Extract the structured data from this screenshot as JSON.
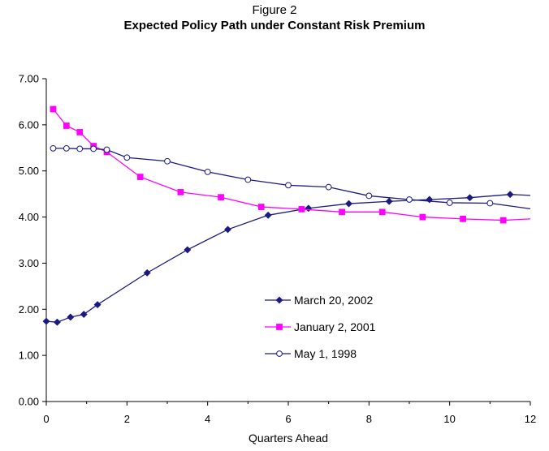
{
  "chart_data": {
    "type": "line",
    "title": "Figure 2",
    "subtitle": "Expected Policy Path under Constant Risk Premium",
    "xlabel": "Quarters Ahead",
    "ylabel": "",
    "xlim": [
      0,
      12
    ],
    "ylim": [
      0,
      7
    ],
    "x_ticks": [
      0,
      2,
      4,
      6,
      8,
      10,
      12
    ],
    "x_tick_labels": [
      "0",
      "2",
      "4",
      "6",
      "8",
      "10",
      "12"
    ],
    "y_ticks": [
      0,
      1,
      2,
      3,
      4,
      5,
      6,
      7
    ],
    "y_tick_labels": [
      "0.00",
      "1.00",
      "2.00",
      "3.00",
      "4.00",
      "5.00",
      "6.00",
      "7.00"
    ],
    "grid": false,
    "legend_position": "center-right",
    "series": [
      {
        "name": "March 20, 2002",
        "color": "#1a1a80",
        "marker": "diamond-filled",
        "x": [
          0,
          0.27,
          0.6,
          0.93,
          1.27,
          2.5,
          3.5,
          4.5,
          5.5,
          6.5,
          7.5,
          8.5,
          9.5,
          10.5,
          11.5,
          12
        ],
        "y": [
          1.74,
          1.72,
          1.83,
          1.89,
          2.1,
          2.79,
          3.29,
          3.73,
          4.04,
          4.19,
          4.29,
          4.34,
          4.38,
          4.42,
          4.49,
          4.47
        ]
      },
      {
        "name": "January 2, 2001",
        "color": "#ff00ff",
        "marker": "square-filled",
        "x": [
          0.17,
          0.5,
          0.83,
          1.17,
          1.5,
          2.33,
          3.33,
          4.33,
          5.33,
          6.33,
          7.33,
          8.33,
          9.33,
          10.33,
          11.33,
          12
        ],
        "y": [
          6.34,
          5.98,
          5.84,
          5.54,
          5.41,
          4.87,
          4.54,
          4.43,
          4.22,
          4.17,
          4.11,
          4.11,
          4.0,
          3.96,
          3.93,
          3.96
        ]
      },
      {
        "name": "May 1, 1998",
        "color": "#1a1a80",
        "marker": "circle-open",
        "x": [
          0.17,
          0.5,
          0.83,
          1.17,
          1.5,
          2.0,
          3.0,
          4.0,
          5.0,
          6.0,
          7.0,
          8.0,
          9.0,
          10.0,
          11.0,
          12
        ],
        "y": [
          5.49,
          5.49,
          5.48,
          5.48,
          5.46,
          5.29,
          5.21,
          4.98,
          4.81,
          4.69,
          4.65,
          4.46,
          4.38,
          4.31,
          4.3,
          4.18
        ]
      }
    ]
  }
}
